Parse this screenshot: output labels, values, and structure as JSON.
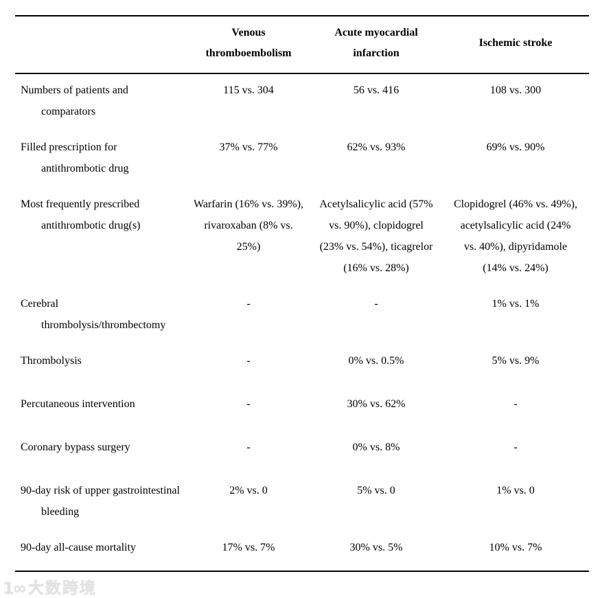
{
  "table": {
    "columns": [
      "",
      "Venous thromboembolism",
      "Acute myocardial infarction",
      "Ischemic stroke"
    ],
    "rows": [
      {
        "label": "Numbers of patients and comparators",
        "vte": "115 vs. 304",
        "ami": "56 vs. 416",
        "stroke": "108 vs. 300"
      },
      {
        "label": "Filled prescription for antithrombotic drug",
        "vte": "37% vs. 77%",
        "ami": "62% vs. 93%",
        "stroke": "69% vs. 90%"
      },
      {
        "label": "Most frequently prescribed antithrombotic drug(s)",
        "vte": "Warfarin (16% vs. 39%), rivaroxaban (8% vs. 25%)",
        "ami": "Acetylsalicylic acid (57% vs. 90%), clopidogrel (23% vs. 54%), ticagrelor (16% vs. 28%)",
        "stroke": "Clopidogrel (46% vs. 49%), acetylsalicylic acid (24% vs. 40%), dipyridamole (14% vs. 24%)"
      },
      {
        "label": "Cerebral thrombolysis/thrombectomy",
        "vte": "-",
        "ami": "-",
        "stroke": "1% vs. 1%"
      },
      {
        "label": "Thrombolysis",
        "vte": "-",
        "ami": "0% vs. 0.5%",
        "stroke": "5% vs. 9%"
      },
      {
        "label": "Percutaneous intervention",
        "vte": "-",
        "ami": "30% vs. 62%",
        "stroke": "-"
      },
      {
        "label": "Coronary bypass surgery",
        "vte": "-",
        "ami": "0% vs. 8%",
        "stroke": "-"
      },
      {
        "label": "90-day risk of upper gastrointestinal bleeding",
        "vte": "2% vs. 0",
        "ami": "5% vs. 0",
        "stroke": "1% vs. 0"
      },
      {
        "label": "90-day all-cause mortality",
        "vte": "17% vs. 7%",
        "ami": "30% vs. 5%",
        "stroke": "10% vs. 7%"
      }
    ]
  },
  "watermark": {
    "icon_glyph": "1∞",
    "text": "大数跨境"
  },
  "colors": {
    "text": "#000000",
    "rule": "#000000",
    "watermark": "#e2e2e2",
    "background": "#ffffff"
  }
}
